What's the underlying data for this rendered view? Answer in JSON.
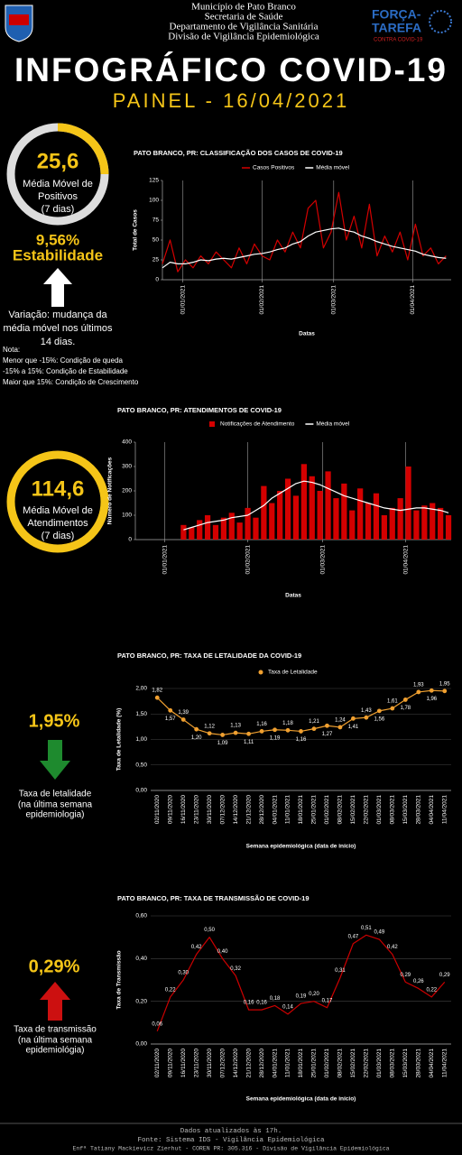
{
  "header": {
    "lines": [
      "Município de Pato Branco",
      "Secretaria de Saúde",
      "Departamento de Vigilância Sanitária",
      "Divisão de Vigilância Epidemiológica"
    ],
    "logo": [
      "FORÇA-",
      "TAREFA",
      "CONTRA COVID-19"
    ],
    "title": "INFOGRÁFICO COVID-19",
    "subtitle": "PAINEL - 16/04/2021"
  },
  "sidebar": {
    "cases": {
      "value": "25,6",
      "label": [
        "Média Móvel de",
        "Positivos",
        "(7 dias)"
      ],
      "change": "9,56%",
      "status": "Estabilidade",
      "note": [
        "Variação: mudança da",
        "média móvel nos últimos",
        "14 dias."
      ],
      "legend": [
        "Nota:",
        "Menor que -15%: Condição de queda",
        "-15% a 15%: Condição de Estabilidade",
        "Maior que 15%: Condição de Crescimento"
      ]
    },
    "visits": {
      "value": "114,6",
      "label": [
        "Média Móvel de",
        "Atendimentos",
        "(7 dias)"
      ]
    },
    "lethality": {
      "value": "1,95%",
      "label": [
        "Taxa de letalidade",
        "(na última semana",
        "epidemiologia)"
      ]
    },
    "transmission": {
      "value": "0,29%",
      "label": [
        "Taxa de transmissão",
        "(na última semana",
        "epidemiológia)"
      ]
    }
  },
  "chart_data": [
    {
      "type": "line",
      "title": "PATO BRANCO, PR: CLASSIFICAÇÃO DOS CASOS DE COVID-19",
      "x_label": "Datas",
      "y_label": "Total de Casos",
      "x": [
        0,
        3,
        6,
        9,
        12,
        15,
        18,
        21,
        24,
        27,
        30,
        33,
        36,
        39,
        42,
        45,
        48,
        51,
        54,
        57,
        60,
        63,
        66,
        69,
        72,
        75,
        78,
        81,
        84,
        87,
        90,
        93,
        96,
        99,
        102,
        105,
        108,
        111
      ],
      "xlim": [
        0,
        113
      ],
      "xticks": [
        {
          "value": 8,
          "label": "01/01/2021"
        },
        {
          "value": 39,
          "label": "01/02/2021"
        },
        {
          "value": 67,
          "label": "01/03/2021"
        },
        {
          "value": 98,
          "label": "01/04/2021"
        }
      ],
      "ylim": [
        0,
        125
      ],
      "yticks": [
        0,
        25,
        50,
        75,
        100,
        125
      ],
      "grid": "x",
      "series": [
        {
          "name": "Casos Positivos",
          "color": "#d40000",
          "values": [
            20,
            50,
            10,
            25,
            15,
            30,
            20,
            35,
            25,
            15,
            40,
            20,
            45,
            30,
            25,
            50,
            35,
            60,
            40,
            90,
            100,
            40,
            60,
            110,
            50,
            80,
            40,
            95,
            30,
            55,
            35,
            60,
            25,
            70,
            30,
            40,
            20,
            30
          ]
        },
        {
          "name": "Média móvel",
          "color": "#ffffff",
          "values": [
            15,
            22,
            20,
            20,
            22,
            25,
            24,
            26,
            27,
            26,
            28,
            30,
            32,
            33,
            35,
            38,
            40,
            45,
            48,
            55,
            60,
            62,
            64,
            65,
            62,
            60,
            55,
            52,
            48,
            45,
            42,
            40,
            38,
            36,
            32,
            30,
            28,
            27
          ]
        }
      ]
    },
    {
      "type": "bar",
      "title": "PATO BRANCO, PR: ATENDIMENTOS DE COVID-19",
      "x_label": "Datas",
      "y_label": "Número de Notificações",
      "x": [
        18,
        21,
        24,
        27,
        30,
        33,
        36,
        39,
        42,
        45,
        48,
        51,
        54,
        57,
        60,
        63,
        66,
        69,
        72,
        75,
        78,
        81,
        84,
        87,
        90,
        93,
        96,
        99,
        102,
        105,
        108,
        111,
        114,
        117
      ],
      "xlim": [
        0,
        118
      ],
      "xticks": [
        {
          "value": 11,
          "label": "01/01/2021"
        },
        {
          "value": 42,
          "label": "01/02/2021"
        },
        {
          "value": 70,
          "label": "01/03/2021"
        },
        {
          "value": 101,
          "label": "01/04/2021"
        }
      ],
      "ylim": [
        0,
        400
      ],
      "yticks": [
        0,
        100,
        200,
        300,
        400
      ],
      "grid": "x",
      "series": [
        {
          "name": "Notificações de Atendimento",
          "color": "#d40000",
          "values": [
            60,
            50,
            80,
            100,
            60,
            90,
            110,
            70,
            130,
            90,
            220,
            150,
            200,
            250,
            180,
            310,
            260,
            200,
            280,
            170,
            230,
            120,
            210,
            150,
            190,
            100,
            130,
            170,
            300,
            120,
            140,
            150,
            130,
            100
          ]
        },
        {
          "name": "Média móvel",
          "type": "line",
          "color": "#ffffff",
          "values": [
            40,
            50,
            60,
            70,
            75,
            80,
            90,
            95,
            100,
            120,
            140,
            170,
            190,
            210,
            230,
            240,
            235,
            225,
            210,
            195,
            180,
            170,
            160,
            150,
            140,
            130,
            125,
            120,
            125,
            130,
            130,
            125,
            120,
            110
          ]
        }
      ]
    },
    {
      "type": "line",
      "title": "PATO BRANCO, PR: TAXA DE LETALIDADE DA COVID-19",
      "x_label": "Semana epidemiológica (data de início)",
      "y_label": "Taxa de Letalidade (%)",
      "categories": [
        "02/11/2020",
        "09/11/2020",
        "16/11/2020",
        "23/11/2020",
        "30/11/2020",
        "07/12/2020",
        "14/12/2020",
        "21/12/2020",
        "28/12/2020",
        "04/01/2021",
        "11/01/2021",
        "18/01/2021",
        "25/01/2021",
        "01/02/2021",
        "08/02/2021",
        "15/02/2021",
        "22/02/2021",
        "01/03/2021",
        "08/03/2021",
        "15/03/2021",
        "28/03/2021",
        "04/04/2021",
        "11/04/2021"
      ],
      "ylim": [
        0,
        2
      ],
      "yticks": [
        {
          "value": 0,
          "label": "0,00"
        },
        {
          "value": 0.5,
          "label": "0,50"
        },
        {
          "value": 1,
          "label": "1,00"
        },
        {
          "value": 1.5,
          "label": "1,50"
        },
        {
          "value": 2,
          "label": "2,00"
        }
      ],
      "grid": "y",
      "series": [
        {
          "name": "Taxa de Letalidade",
          "color": "#f0a030",
          "marker": true,
          "values": [
            1.82,
            1.57,
            1.39,
            1.2,
            1.12,
            1.09,
            1.13,
            1.11,
            1.16,
            1.19,
            1.18,
            1.16,
            1.21,
            1.27,
            1.24,
            1.41,
            1.43,
            1.56,
            1.61,
            1.78,
            1.93,
            1.96,
            1.95
          ],
          "value_labels": [
            "1,82",
            "1,57",
            "1,39",
            "1,20",
            "1,12",
            "1,09",
            "1,13",
            "1,11",
            "1,16",
            "1,19",
            "1,18",
            "1,16",
            "1,21",
            "1,27",
            "1,24",
            "1,41",
            "1,43",
            "1,56",
            "1,61",
            "1,78",
            "1,93",
            "1,96",
            "1,95"
          ]
        }
      ]
    },
    {
      "type": "line",
      "title": "PATO BRANCO, PR: TAXA DE TRANSMISSÃO DE COVID-19",
      "x_label": "Semana epidemiológica (data de início)",
      "y_label": "Taxa de Transmissão",
      "categories": [
        "02/11/2020",
        "09/11/2020",
        "16/11/2020",
        "23/11/2020",
        "30/11/2020",
        "07/12/2020",
        "14/12/2020",
        "21/12/2020",
        "28/12/2020",
        "04/01/2021",
        "11/01/2021",
        "18/01/2021",
        "25/01/2021",
        "01/02/2021",
        "08/02/2021",
        "15/02/2021",
        "22/02/2021",
        "01/03/2021",
        "08/03/2021",
        "15/03/2021",
        "28/03/2021",
        "04/04/2021",
        "11/04/2021"
      ],
      "ylim": [
        0,
        0.6
      ],
      "yticks": [
        {
          "value": 0,
          "label": "0,00"
        },
        {
          "value": 0.2,
          "label": "0,20"
        },
        {
          "value": 0.4,
          "label": "0,40"
        },
        {
          "value": 0.6,
          "label": "0,60"
        }
      ],
      "grid": "y",
      "series": [
        {
          "color": "#cc0000",
          "values": [
            0.06,
            0.22,
            0.3,
            0.42,
            0.5,
            0.4,
            0.32,
            0.16,
            0.16,
            0.18,
            0.14,
            0.19,
            0.2,
            0.17,
            0.31,
            0.47,
            0.51,
            0.49,
            0.42,
            0.29,
            0.26,
            0.22,
            0.29
          ],
          "value_labels": [
            "0,06",
            "0,22",
            "0,30",
            "0,42",
            "0,50",
            "0,40",
            "0,32",
            "0,16",
            "0,16",
            "0,18",
            "0,14",
            "0,19",
            "0,20",
            "0,17",
            "0,31",
            "0,47",
            "0,51",
            "0,49",
            "0,42",
            "0,29",
            "0,26",
            "0,22",
            "0,29"
          ]
        }
      ]
    }
  ],
  "footer": [
    "Dados atualizados às 17h.",
    "Fonte: Sistema IDS - Vigilância Epidemiológica",
    "Enfª Tatiany Mackievicz Zierhut - COREN PR: 305.316 - Divisão de Vigilância Epidemiológica"
  ]
}
